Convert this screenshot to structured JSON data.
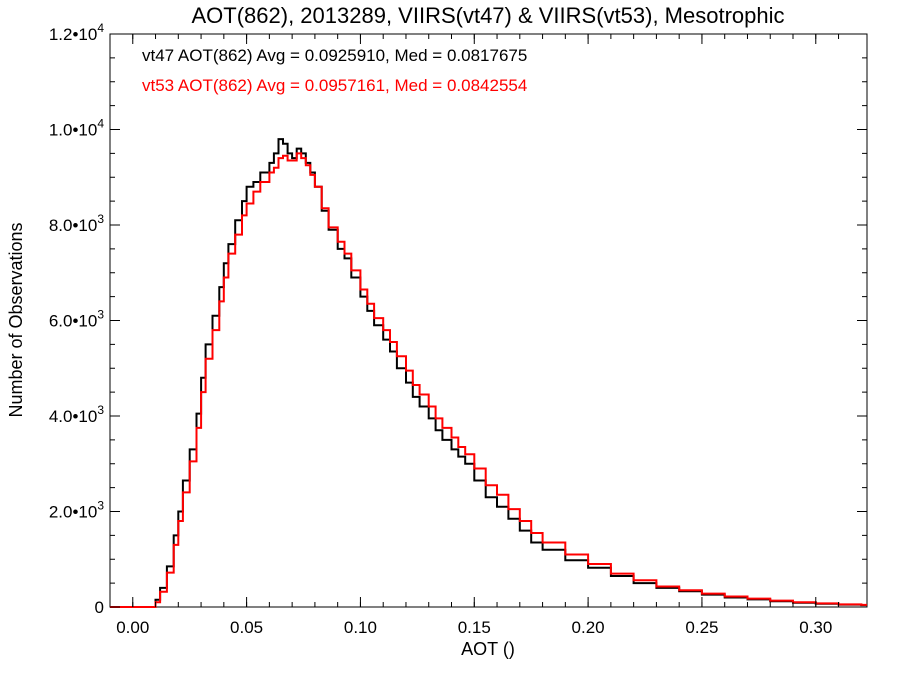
{
  "chart_data": {
    "type": "line",
    "title": "AOT(862), 2013289, VIIRS(vt47) & VIIRS(vt53), Mesotrophic",
    "xlabel": "AOT ()",
    "ylabel": "Number of Observations",
    "xlim": [
      -0.01,
      0.3225
    ],
    "ylim": [
      0,
      12000
    ],
    "grid": false,
    "x_ticks": [
      "0.00",
      "0.05",
      "0.10",
      "0.15",
      "0.20",
      "0.25",
      "0.30"
    ],
    "y_ticks": [
      {
        "mant": "0",
        "exp": ""
      },
      {
        "mant": "2.0•10",
        "exp": "3"
      },
      {
        "mant": "4.0•10",
        "exp": "3"
      },
      {
        "mant": "6.0•10",
        "exp": "3"
      },
      {
        "mant": "8.0•10",
        "exp": "3"
      },
      {
        "mant": "1.0•10",
        "exp": "4"
      },
      {
        "mant": "1.2•10",
        "exp": "4"
      }
    ],
    "annotations": [
      {
        "text": "vt47 AOT(862) Avg = 0.0925910, Med = 0.0817675",
        "color": "#000000"
      },
      {
        "text": "vt53 AOT(862) Avg = 0.0957161, Med = 0.0842554",
        "color": "#ff0000"
      }
    ],
    "series": [
      {
        "color": "#000000",
        "x": [
          -0.01,
          0.0,
          0.005,
          0.009,
          0.01,
          0.012,
          0.015,
          0.018,
          0.02,
          0.022,
          0.025,
          0.028,
          0.03,
          0.032,
          0.035,
          0.038,
          0.04,
          0.042,
          0.045,
          0.048,
          0.05,
          0.053,
          0.056,
          0.06,
          0.062,
          0.064,
          0.066,
          0.068,
          0.07,
          0.072,
          0.074,
          0.076,
          0.078,
          0.08,
          0.083,
          0.086,
          0.09,
          0.093,
          0.096,
          0.1,
          0.103,
          0.106,
          0.11,
          0.113,
          0.116,
          0.12,
          0.123,
          0.126,
          0.13,
          0.133,
          0.136,
          0.14,
          0.143,
          0.146,
          0.15,
          0.155,
          0.16,
          0.165,
          0.17,
          0.175,
          0.18,
          0.19,
          0.2,
          0.21,
          0.22,
          0.23,
          0.24,
          0.25,
          0.26,
          0.27,
          0.28,
          0.29,
          0.3,
          0.31,
          0.32
        ],
        "values": [
          0,
          0,
          0,
          0,
          150,
          400,
          850,
          1500,
          2000,
          2650,
          3300,
          4050,
          4800,
          5500,
          6100,
          6700,
          7200,
          7600,
          8100,
          8500,
          8800,
          8900,
          9100,
          9300,
          9500,
          9800,
          9700,
          9500,
          9400,
          9600,
          9500,
          9300,
          9100,
          8800,
          8300,
          7900,
          7500,
          7300,
          6900,
          6500,
          6200,
          5900,
          5600,
          5350,
          5000,
          4700,
          4400,
          4200,
          3950,
          3700,
          3500,
          3300,
          3150,
          3000,
          2650,
          2300,
          2100,
          1850,
          1600,
          1350,
          1200,
          980,
          820,
          650,
          500,
          400,
          330,
          260,
          200,
          160,
          120,
          90,
          70,
          50,
          40
        ]
      },
      {
        "color": "#ff0000",
        "x": [
          -0.01,
          0.0,
          0.005,
          0.009,
          0.01,
          0.012,
          0.015,
          0.018,
          0.02,
          0.022,
          0.025,
          0.028,
          0.03,
          0.032,
          0.035,
          0.038,
          0.04,
          0.042,
          0.045,
          0.048,
          0.05,
          0.053,
          0.056,
          0.06,
          0.062,
          0.064,
          0.066,
          0.068,
          0.07,
          0.072,
          0.074,
          0.076,
          0.078,
          0.08,
          0.083,
          0.086,
          0.09,
          0.093,
          0.096,
          0.1,
          0.103,
          0.106,
          0.11,
          0.113,
          0.116,
          0.12,
          0.123,
          0.126,
          0.13,
          0.133,
          0.136,
          0.14,
          0.143,
          0.146,
          0.15,
          0.155,
          0.16,
          0.165,
          0.17,
          0.175,
          0.18,
          0.19,
          0.2,
          0.21,
          0.22,
          0.23,
          0.24,
          0.25,
          0.26,
          0.27,
          0.28,
          0.29,
          0.3,
          0.31,
          0.32
        ],
        "values": [
          0,
          0,
          0,
          0,
          100,
          320,
          720,
          1300,
          1800,
          2400,
          3050,
          3750,
          4500,
          5200,
          5800,
          6400,
          6900,
          7400,
          7800,
          8200,
          8450,
          8700,
          8900,
          9100,
          9200,
          9400,
          9450,
          9350,
          9350,
          9500,
          9400,
          9250,
          9050,
          8800,
          8350,
          7950,
          7650,
          7400,
          7050,
          6650,
          6350,
          6050,
          5800,
          5550,
          5250,
          4950,
          4650,
          4450,
          4200,
          3950,
          3750,
          3550,
          3350,
          3200,
          2900,
          2550,
          2350,
          2050,
          1800,
          1550,
          1350,
          1100,
          900,
          700,
          560,
          430,
          350,
          280,
          220,
          175,
          135,
          100,
          75,
          55,
          45
        ]
      }
    ]
  }
}
